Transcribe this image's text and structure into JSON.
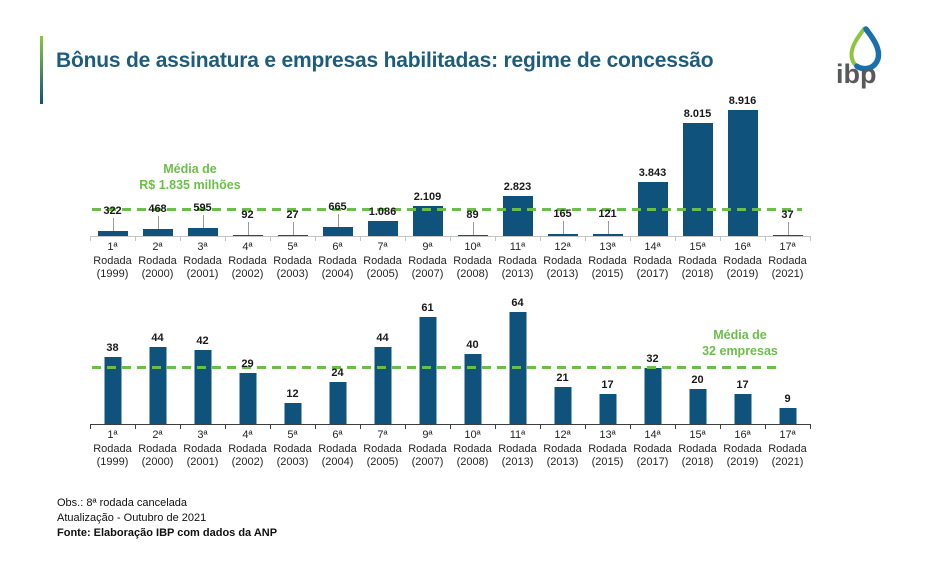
{
  "header": {
    "title": "Bônus de assinatura e empresas habilitadas: regime de concessão",
    "logo_text": "ibp"
  },
  "colors": {
    "bar": "#0F537C",
    "accent_green": "#6CBE4B",
    "title": "#1E5C7E",
    "axis_light": "#C5C5C5",
    "axis_dark": "#3F3F3F",
    "logo_green": "#8CC63F",
    "logo_blue": "#1A6FAD",
    "logo_gray": "#58595B"
  },
  "chart_data": [
    {
      "type": "bar",
      "name": "signature-bonus-by-round",
      "categories": [
        [
          "1ª",
          "Rodada",
          "(1999)"
        ],
        [
          "2ª",
          "Rodada",
          "(2000)"
        ],
        [
          "3ª",
          "Rodada",
          "(2001)"
        ],
        [
          "4ª",
          "Rodada",
          "(2002)"
        ],
        [
          "5ª",
          "Rodada",
          "(2003)"
        ],
        [
          "6ª",
          "Rodada",
          "(2004)"
        ],
        [
          "7ª",
          "Rodada",
          "(2005)"
        ],
        [
          "9ª",
          "Rodada",
          "(2007)"
        ],
        [
          "10ª",
          "Rodada",
          "(2008)"
        ],
        [
          "11ª",
          "Rodada",
          "(2013)"
        ],
        [
          "12ª",
          "Rodada",
          "(2013)"
        ],
        [
          "13ª",
          "Rodada",
          "(2015)"
        ],
        [
          "14ª",
          "Rodada",
          "(2017)"
        ],
        [
          "15ª",
          "Rodada",
          "(2018)"
        ],
        [
          "16ª",
          "Rodada",
          "(2019)"
        ],
        [
          "17ª",
          "Rodada",
          "(2021)"
        ]
      ],
      "values": [
        322,
        468,
        595,
        92,
        27,
        665,
        1086,
        2109,
        89,
        2823,
        165,
        121,
        3843,
        8015,
        8916,
        37
      ],
      "labels": [
        "322",
        "468",
        "595",
        "92",
        "27",
        "665",
        "1.086",
        "2.109",
        "89",
        "2.823",
        "165",
        "121",
        "3.843",
        "8.015",
        "8.916",
        "37"
      ],
      "ylim": [
        0,
        9000
      ],
      "grid": false,
      "mean_line": {
        "value": 1835,
        "label_line1": "Média de",
        "label_line2": "R$ 1.835 milhões"
      }
    },
    {
      "type": "bar",
      "name": "qualified-companies-by-round",
      "categories": [
        [
          "1ª",
          "Rodada",
          "(1999)"
        ],
        [
          "2ª",
          "Rodada",
          "(2000)"
        ],
        [
          "3ª",
          "Rodada",
          "(2001)"
        ],
        [
          "4ª",
          "Rodada",
          "(2002)"
        ],
        [
          "5ª",
          "Rodada",
          "(2003)"
        ],
        [
          "6ª",
          "Rodada",
          "(2004)"
        ],
        [
          "7ª",
          "Rodada",
          "(2005)"
        ],
        [
          "9ª",
          "Rodada",
          "(2007)"
        ],
        [
          "10ª",
          "Rodada",
          "(2008)"
        ],
        [
          "11ª",
          "Rodada",
          "(2013)"
        ],
        [
          "12ª",
          "Rodada",
          "(2013)"
        ],
        [
          "13ª",
          "Rodada",
          "(2015)"
        ],
        [
          "14ª",
          "Rodada",
          "(2017)"
        ],
        [
          "15ª",
          "Rodada",
          "(2018)"
        ],
        [
          "16ª",
          "Rodada",
          "(2019)"
        ],
        [
          "17ª",
          "Rodada",
          "(2021)"
        ]
      ],
      "values": [
        38,
        44,
        42,
        29,
        12,
        24,
        44,
        61,
        40,
        64,
        21,
        17,
        32,
        20,
        17,
        9
      ],
      "labels": [
        "38",
        "44",
        "42",
        "29",
        "12",
        "24",
        "44",
        "61",
        "40",
        "64",
        "21",
        "17",
        "32",
        "20",
        "17",
        "9"
      ],
      "ylim": [
        0,
        70
      ],
      "grid": false,
      "mean_line": {
        "value": 32,
        "label_line1": "Média de",
        "label_line2": "32 empresas"
      }
    }
  ],
  "footer": {
    "obs": "Obs.: 8ª rodada cancelada",
    "update": "Atualização - Outubro de 2021",
    "source": "Fonte: Elaboração IBP com dados da ANP"
  }
}
